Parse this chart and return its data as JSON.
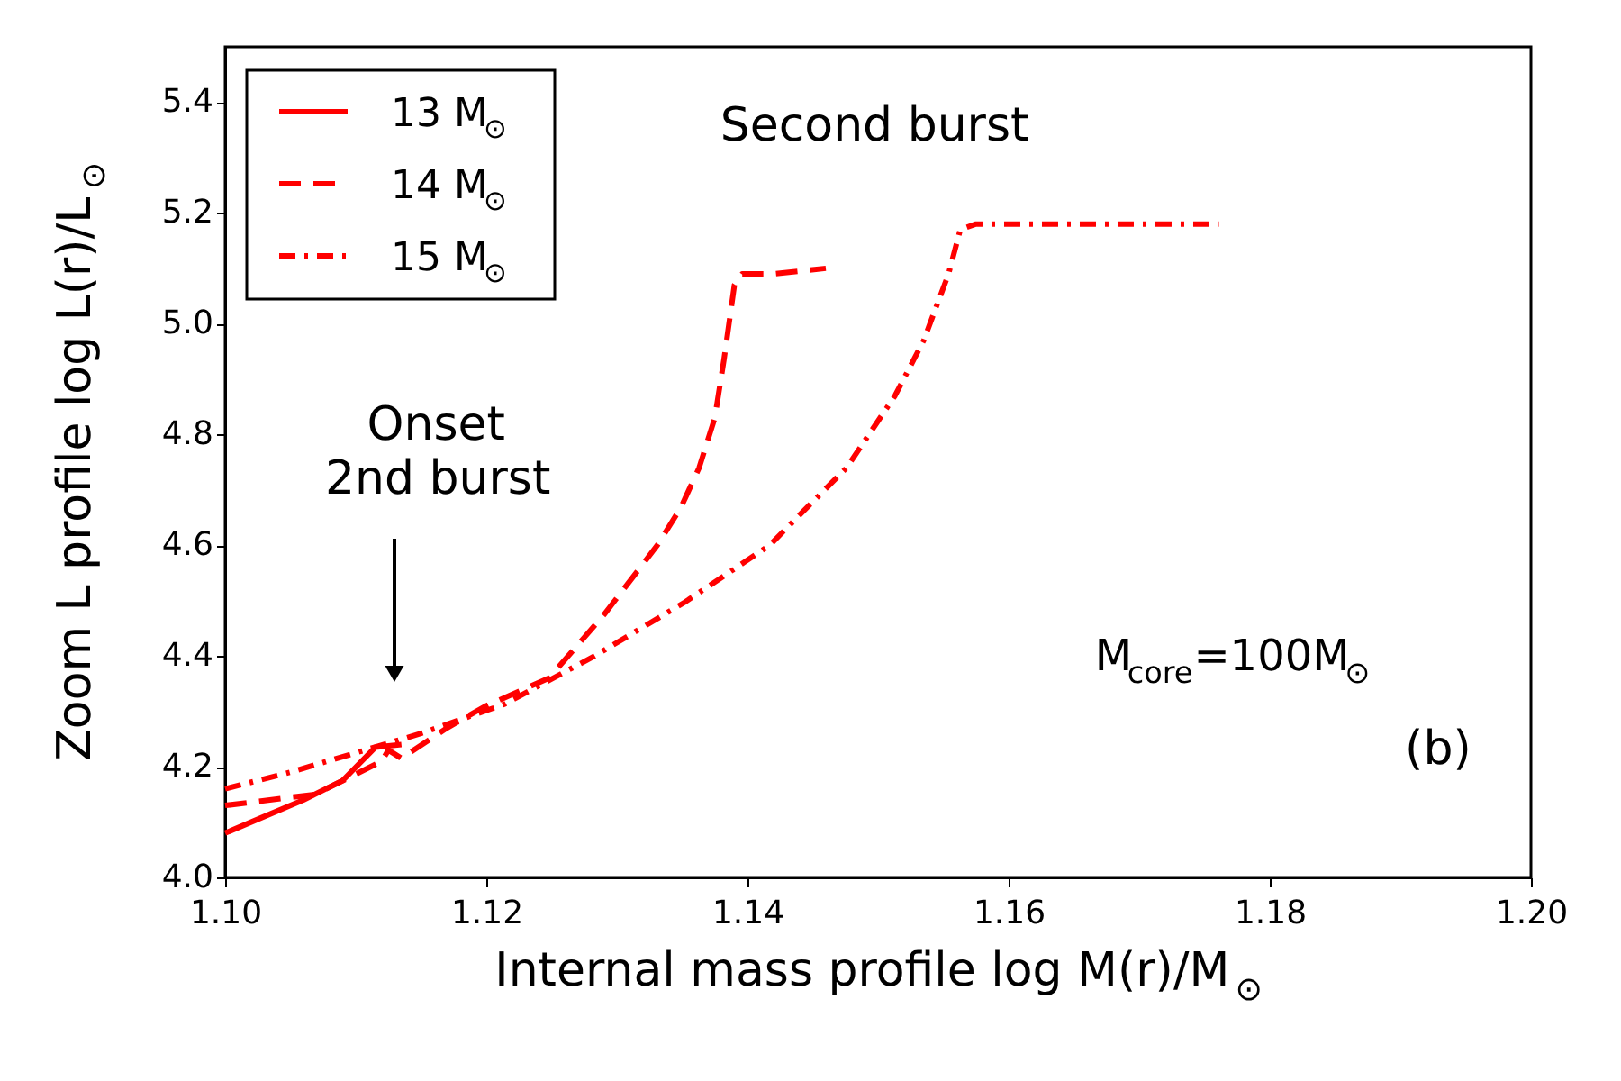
{
  "chart_data": {
    "type": "line",
    "xlabel": "Internal mass profile log M(r)/M$_{⊙}$",
    "ylabel": "Zoom L profile log L(r)/L$_{⊙}$",
    "xlim": [
      1.1,
      1.2
    ],
    "xticks": [
      {
        "value": 1.1,
        "label": "1.10"
      },
      1.12,
      1.14,
      1.16,
      1.18,
      {
        "value": 1.2,
        "label": "1.20"
      }
    ],
    "ylim": [
      4.0,
      5.5
    ],
    "yticks": [
      {
        "value": 4.0,
        "label": "4.0"
      },
      4.2,
      4.4,
      4.6,
      4.8,
      {
        "value": 5.0,
        "label": "5.0"
      },
      5.2,
      5.4
    ],
    "grid": false,
    "legend": "top left",
    "series": [
      {
        "name": "13 M$_{⊙}$",
        "color": "#ff0000",
        "line_style": "solid",
        "x": [
          1.1,
          1.103,
          1.106,
          1.109,
          1.1115,
          1.1135
        ],
        "values": [
          4.08,
          4.11,
          4.14,
          4.175,
          4.235,
          4.24
        ]
      },
      {
        "name": "14 M$_{⊙}$",
        "color": "#ff0000",
        "line_style": "dashed",
        "x": [
          1.1,
          1.1069,
          1.112,
          1.1125,
          1.1135,
          1.117,
          1.12,
          1.1248,
          1.129,
          1.1331,
          1.1349,
          1.1363,
          1.1375,
          1.1382,
          1.139,
          1.1396,
          1.142,
          1.146
        ],
        "values": [
          4.13,
          4.15,
          4.21,
          4.23,
          4.215,
          4.27,
          4.31,
          4.36,
          4.474,
          4.6,
          4.668,
          4.74,
          4.83,
          4.935,
          5.07,
          5.09,
          5.09,
          5.1
        ]
      },
      {
        "name": "15 M$_{⊙}$",
        "color": "#ff0000",
        "line_style": "dotted",
        "x": [
          1.1,
          1.105,
          1.11,
          1.115,
          1.1214,
          1.1283,
          1.1352,
          1.1417,
          1.1476,
          1.1513,
          1.1535,
          1.1554,
          1.1563,
          1.1575,
          1.1761
        ],
        "values": [
          4.16,
          4.19,
          4.225,
          4.26,
          4.313,
          4.4,
          4.497,
          4.6,
          4.74,
          4.87,
          4.97,
          5.09,
          5.17,
          5.18,
          5.18
        ]
      }
    ],
    "annotations": [
      "Second burst",
      "Onset\n2nd burst",
      "M$_{core}$=100M$_{⊙}$",
      "(b)"
    ]
  }
}
